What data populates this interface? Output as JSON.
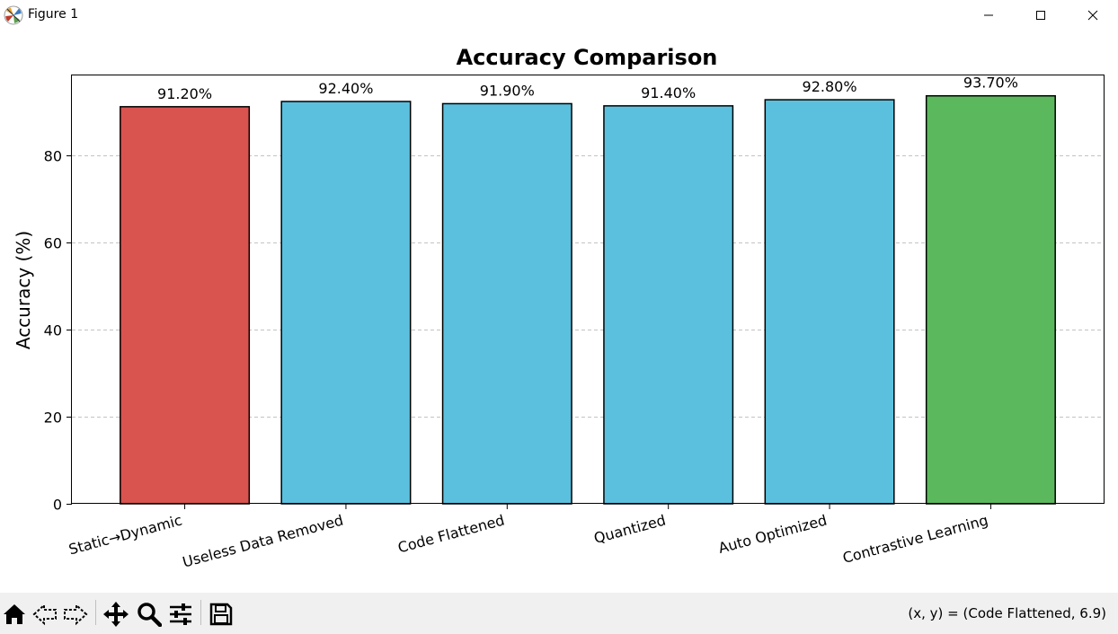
{
  "window": {
    "title": "Figure 1",
    "icons": {
      "app": "matplotlib-icon",
      "minimize": "minimize-icon",
      "maximize": "maximize-icon",
      "close": "close-icon"
    }
  },
  "toolbar": {
    "buttons": [
      {
        "name": "home-button",
        "icon": "home-icon"
      },
      {
        "name": "back-button",
        "icon": "back-arrow-icon"
      },
      {
        "name": "forward-button",
        "icon": "forward-arrow-icon"
      },
      {
        "name": "pan-button",
        "icon": "pan-move-icon"
      },
      {
        "name": "zoom-button",
        "icon": "zoom-magnifier-icon"
      },
      {
        "name": "configure-subplots-button",
        "icon": "sliders-icon"
      },
      {
        "name": "save-button",
        "icon": "save-disk-icon"
      }
    ],
    "coords_text": "(x, y) = (Code Flattened, 6.9)"
  },
  "chart_data": {
    "type": "bar",
    "title": "Accuracy Comparison",
    "xlabel": "",
    "ylabel": "Accuracy (%)",
    "categories": [
      "Static→Dynamic",
      "Useless Data Removed",
      "Code Flattened",
      "Quantized",
      "Auto Optimized",
      "Contrastive Learning"
    ],
    "values": [
      91.2,
      92.4,
      91.9,
      91.4,
      92.8,
      93.7
    ],
    "value_labels": [
      "91.20%",
      "92.40%",
      "91.90%",
      "91.40%",
      "92.80%",
      "93.70%"
    ],
    "colors": [
      "#d9534f",
      "#5bc0de",
      "#5bc0de",
      "#5bc0de",
      "#5bc0de",
      "#5cb85c"
    ],
    "ylim": [
      0,
      98.385
    ],
    "yticks": [
      0,
      20,
      40,
      60,
      80
    ],
    "ytick_labels": [
      "0",
      "20",
      "40",
      "60",
      "80"
    ],
    "grid": "y-dashed"
  }
}
